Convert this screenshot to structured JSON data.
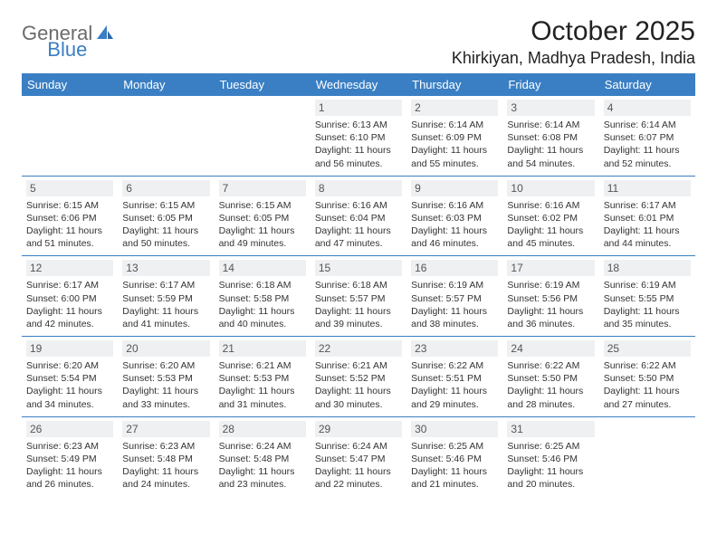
{
  "logo": {
    "word1": "General",
    "word2": "Blue"
  },
  "title": "October 2025",
  "location": "Khirkiyan, Madhya Pradesh, India",
  "colors": {
    "header_bg": "#3a7fc4",
    "header_text": "#ffffff",
    "row_border": "#3a7fc4",
    "daynum_bg": "#eef0f2",
    "daynum_text": "#555555",
    "body_text": "#333333",
    "page_bg": "#ffffff",
    "logo_gray": "#6b6b6b",
    "logo_blue": "#3a7fc4"
  },
  "day_headers": [
    "Sunday",
    "Monday",
    "Tuesday",
    "Wednesday",
    "Thursday",
    "Friday",
    "Saturday"
  ],
  "weeks": [
    [
      {
        "empty": true
      },
      {
        "empty": true
      },
      {
        "empty": true
      },
      {
        "num": "1",
        "sunrise": "Sunrise: 6:13 AM",
        "sunset": "Sunset: 6:10 PM",
        "day1": "Daylight: 11 hours",
        "day2": "and 56 minutes."
      },
      {
        "num": "2",
        "sunrise": "Sunrise: 6:14 AM",
        "sunset": "Sunset: 6:09 PM",
        "day1": "Daylight: 11 hours",
        "day2": "and 55 minutes."
      },
      {
        "num": "3",
        "sunrise": "Sunrise: 6:14 AM",
        "sunset": "Sunset: 6:08 PM",
        "day1": "Daylight: 11 hours",
        "day2": "and 54 minutes."
      },
      {
        "num": "4",
        "sunrise": "Sunrise: 6:14 AM",
        "sunset": "Sunset: 6:07 PM",
        "day1": "Daylight: 11 hours",
        "day2": "and 52 minutes."
      }
    ],
    [
      {
        "num": "5",
        "sunrise": "Sunrise: 6:15 AM",
        "sunset": "Sunset: 6:06 PM",
        "day1": "Daylight: 11 hours",
        "day2": "and 51 minutes."
      },
      {
        "num": "6",
        "sunrise": "Sunrise: 6:15 AM",
        "sunset": "Sunset: 6:05 PM",
        "day1": "Daylight: 11 hours",
        "day2": "and 50 minutes."
      },
      {
        "num": "7",
        "sunrise": "Sunrise: 6:15 AM",
        "sunset": "Sunset: 6:05 PM",
        "day1": "Daylight: 11 hours",
        "day2": "and 49 minutes."
      },
      {
        "num": "8",
        "sunrise": "Sunrise: 6:16 AM",
        "sunset": "Sunset: 6:04 PM",
        "day1": "Daylight: 11 hours",
        "day2": "and 47 minutes."
      },
      {
        "num": "9",
        "sunrise": "Sunrise: 6:16 AM",
        "sunset": "Sunset: 6:03 PM",
        "day1": "Daylight: 11 hours",
        "day2": "and 46 minutes."
      },
      {
        "num": "10",
        "sunrise": "Sunrise: 6:16 AM",
        "sunset": "Sunset: 6:02 PM",
        "day1": "Daylight: 11 hours",
        "day2": "and 45 minutes."
      },
      {
        "num": "11",
        "sunrise": "Sunrise: 6:17 AM",
        "sunset": "Sunset: 6:01 PM",
        "day1": "Daylight: 11 hours",
        "day2": "and 44 minutes."
      }
    ],
    [
      {
        "num": "12",
        "sunrise": "Sunrise: 6:17 AM",
        "sunset": "Sunset: 6:00 PM",
        "day1": "Daylight: 11 hours",
        "day2": "and 42 minutes."
      },
      {
        "num": "13",
        "sunrise": "Sunrise: 6:17 AM",
        "sunset": "Sunset: 5:59 PM",
        "day1": "Daylight: 11 hours",
        "day2": "and 41 minutes."
      },
      {
        "num": "14",
        "sunrise": "Sunrise: 6:18 AM",
        "sunset": "Sunset: 5:58 PM",
        "day1": "Daylight: 11 hours",
        "day2": "and 40 minutes."
      },
      {
        "num": "15",
        "sunrise": "Sunrise: 6:18 AM",
        "sunset": "Sunset: 5:57 PM",
        "day1": "Daylight: 11 hours",
        "day2": "and 39 minutes."
      },
      {
        "num": "16",
        "sunrise": "Sunrise: 6:19 AM",
        "sunset": "Sunset: 5:57 PM",
        "day1": "Daylight: 11 hours",
        "day2": "and 38 minutes."
      },
      {
        "num": "17",
        "sunrise": "Sunrise: 6:19 AM",
        "sunset": "Sunset: 5:56 PM",
        "day1": "Daylight: 11 hours",
        "day2": "and 36 minutes."
      },
      {
        "num": "18",
        "sunrise": "Sunrise: 6:19 AM",
        "sunset": "Sunset: 5:55 PM",
        "day1": "Daylight: 11 hours",
        "day2": "and 35 minutes."
      }
    ],
    [
      {
        "num": "19",
        "sunrise": "Sunrise: 6:20 AM",
        "sunset": "Sunset: 5:54 PM",
        "day1": "Daylight: 11 hours",
        "day2": "and 34 minutes."
      },
      {
        "num": "20",
        "sunrise": "Sunrise: 6:20 AM",
        "sunset": "Sunset: 5:53 PM",
        "day1": "Daylight: 11 hours",
        "day2": "and 33 minutes."
      },
      {
        "num": "21",
        "sunrise": "Sunrise: 6:21 AM",
        "sunset": "Sunset: 5:53 PM",
        "day1": "Daylight: 11 hours",
        "day2": "and 31 minutes."
      },
      {
        "num": "22",
        "sunrise": "Sunrise: 6:21 AM",
        "sunset": "Sunset: 5:52 PM",
        "day1": "Daylight: 11 hours",
        "day2": "and 30 minutes."
      },
      {
        "num": "23",
        "sunrise": "Sunrise: 6:22 AM",
        "sunset": "Sunset: 5:51 PM",
        "day1": "Daylight: 11 hours",
        "day2": "and 29 minutes."
      },
      {
        "num": "24",
        "sunrise": "Sunrise: 6:22 AM",
        "sunset": "Sunset: 5:50 PM",
        "day1": "Daylight: 11 hours",
        "day2": "and 28 minutes."
      },
      {
        "num": "25",
        "sunrise": "Sunrise: 6:22 AM",
        "sunset": "Sunset: 5:50 PM",
        "day1": "Daylight: 11 hours",
        "day2": "and 27 minutes."
      }
    ],
    [
      {
        "num": "26",
        "sunrise": "Sunrise: 6:23 AM",
        "sunset": "Sunset: 5:49 PM",
        "day1": "Daylight: 11 hours",
        "day2": "and 26 minutes."
      },
      {
        "num": "27",
        "sunrise": "Sunrise: 6:23 AM",
        "sunset": "Sunset: 5:48 PM",
        "day1": "Daylight: 11 hours",
        "day2": "and 24 minutes."
      },
      {
        "num": "28",
        "sunrise": "Sunrise: 6:24 AM",
        "sunset": "Sunset: 5:48 PM",
        "day1": "Daylight: 11 hours",
        "day2": "and 23 minutes."
      },
      {
        "num": "29",
        "sunrise": "Sunrise: 6:24 AM",
        "sunset": "Sunset: 5:47 PM",
        "day1": "Daylight: 11 hours",
        "day2": "and 22 minutes."
      },
      {
        "num": "30",
        "sunrise": "Sunrise: 6:25 AM",
        "sunset": "Sunset: 5:46 PM",
        "day1": "Daylight: 11 hours",
        "day2": "and 21 minutes."
      },
      {
        "num": "31",
        "sunrise": "Sunrise: 6:25 AM",
        "sunset": "Sunset: 5:46 PM",
        "day1": "Daylight: 11 hours",
        "day2": "and 20 minutes."
      },
      {
        "empty": true
      }
    ]
  ]
}
